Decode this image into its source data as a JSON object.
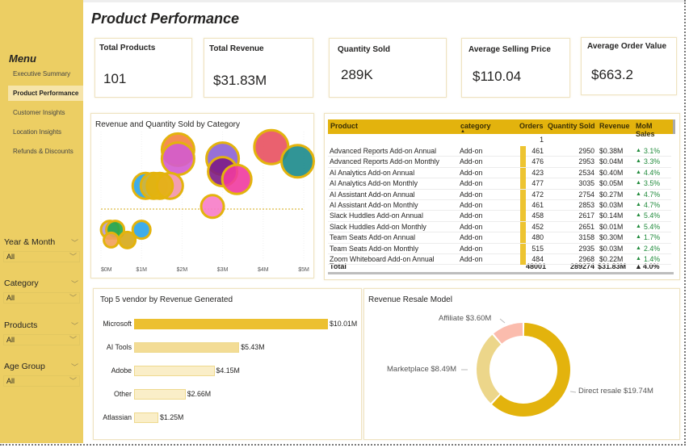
{
  "page": {
    "title": "Product Performance"
  },
  "sidebar": {
    "menu_title": "Menu",
    "items": [
      {
        "label": "Executive Summary",
        "active": false
      },
      {
        "label": "Product Performance",
        "active": true
      },
      {
        "label": "Customer Insights",
        "active": false
      },
      {
        "label": "Location Insights",
        "active": false
      },
      {
        "label": "Refunds & Discounts",
        "active": false
      }
    ],
    "slicers": [
      {
        "label": "Year & Month",
        "value": "All"
      },
      {
        "label": "Category",
        "value": "All"
      },
      {
        "label": "Products",
        "value": "All"
      },
      {
        "label": "Age Group",
        "value": "All"
      }
    ],
    "chevron": "﹀"
  },
  "kpis": [
    {
      "label": "Total Products",
      "value": "101"
    },
    {
      "label": "Total Revenue",
      "value": "$31.83M"
    },
    {
      "label": "Quantity Sold",
      "value": "289K"
    },
    {
      "label": "Average Selling Price",
      "value": "$110.04"
    },
    {
      "label": "Average Order Value",
      "value": "$663.2"
    }
  ],
  "colors": {
    "accent": "#e3b30d",
    "sidebar": "#ecce63",
    "positive": "#1f8a3a"
  },
  "table": {
    "columns": [
      "Product",
      "category",
      "Orders",
      "Quantity Sold",
      "Revenue",
      "MoM Sales"
    ],
    "sort_indicator": "▲",
    "first_row": {
      "orders": "1"
    },
    "rows": [
      {
        "product": "Advanced Reports Add-on Annual",
        "category": "Add-on",
        "orders": "461",
        "qty": "2950",
        "revenue": "$0.38M",
        "mom": "3.1%"
      },
      {
        "product": "Advanced Reports Add-on Monthly",
        "category": "Add-on",
        "orders": "476",
        "qty": "2953",
        "revenue": "$0.04M",
        "mom": "3.3%"
      },
      {
        "product": "AI Analytics Add-on Annual",
        "category": "Add-on",
        "orders": "423",
        "qty": "2534",
        "revenue": "$0.40M",
        "mom": "4.4%"
      },
      {
        "product": "AI Analytics Add-on Monthly",
        "category": "Add-on",
        "orders": "477",
        "qty": "3035",
        "revenue": "$0.05M",
        "mom": "3.5%"
      },
      {
        "product": "AI Assistant Add-on Annual",
        "category": "Add-on",
        "orders": "472",
        "qty": "2754",
        "revenue": "$0.27M",
        "mom": "4.7%"
      },
      {
        "product": "AI Assistant Add-on Monthly",
        "category": "Add-on",
        "orders": "461",
        "qty": "2853",
        "revenue": "$0.03M",
        "mom": "4.7%"
      },
      {
        "product": "Slack Huddles Add-on Annual",
        "category": "Add-on",
        "orders": "458",
        "qty": "2617",
        "revenue": "$0.14M",
        "mom": "5.4%"
      },
      {
        "product": "Slack Huddles Add-on Monthly",
        "category": "Add-on",
        "orders": "452",
        "qty": "2651",
        "revenue": "$0.01M",
        "mom": "5.4%"
      },
      {
        "product": "Team Seats Add-on Annual",
        "category": "Add-on",
        "orders": "480",
        "qty": "3158",
        "revenue": "$0.30M",
        "mom": "1.7%"
      },
      {
        "product": "Team Seats Add-on Monthly",
        "category": "Add-on",
        "orders": "515",
        "qty": "2935",
        "revenue": "$0.03M",
        "mom": "2.4%"
      },
      {
        "product": "Zoom Whiteboard Add-on Annual",
        "category": "Add-on",
        "orders": "484",
        "qty": "2968",
        "revenue": "$0.22M",
        "mom": "1.4%"
      }
    ],
    "total": {
      "label": "Total",
      "orders": "48001",
      "qty": "289274",
      "revenue": "$31.83M",
      "mom": "4.0%"
    },
    "up_arrow": "▲"
  },
  "chart_data": [
    {
      "type": "scatter",
      "title": "Revenue and Quantity Sold by Category",
      "xlabel": "",
      "ylabel": "",
      "x_ticks": [
        "$0M",
        "$1M",
        "$2M",
        "$3M",
        "$4M",
        "$5M"
      ],
      "xlim": [
        0,
        5
      ],
      "y_reference_line": "average (dashed)",
      "points": [
        {
          "x": 1.9,
          "y": 0.86,
          "size": 1.0,
          "color": "#f4813f"
        },
        {
          "x": 1.9,
          "y": 0.79,
          "size": 1.0,
          "color": "#d35bd0"
        },
        {
          "x": 3.0,
          "y": 0.79,
          "size": 1.0,
          "color": "#8c60d4"
        },
        {
          "x": 3.0,
          "y": 0.69,
          "size": 0.9,
          "color": "#7d1c86"
        },
        {
          "x": 3.35,
          "y": 0.63,
          "size": 0.9,
          "color": "#ef3aa0"
        },
        {
          "x": 4.2,
          "y": 0.88,
          "size": 1.05,
          "color": "#e8505f"
        },
        {
          "x": 4.85,
          "y": 0.77,
          "size": 1.0,
          "color": "#1b8a8b"
        },
        {
          "x": 1.1,
          "y": 0.58,
          "size": 0.8,
          "color": "#2aa3e8"
        },
        {
          "x": 1.3,
          "y": 0.58,
          "size": 0.8,
          "color": "#d4b53a"
        },
        {
          "x": 1.7,
          "y": 0.58,
          "size": 0.8,
          "color": "#f294a8"
        },
        {
          "x": 1.45,
          "y": 0.58,
          "size": 0.8,
          "color": "#e3b30d"
        },
        {
          "x": 2.75,
          "y": 0.42,
          "size": 0.7,
          "color": "#f77cc8"
        },
        {
          "x": 1.0,
          "y": 0.24,
          "size": 0.55,
          "color": "#2aa3e8"
        },
        {
          "x": 0.22,
          "y": 0.24,
          "size": 0.55,
          "color": "#b49ad6"
        },
        {
          "x": 0.35,
          "y": 0.24,
          "size": 0.55,
          "color": "#22a84a"
        },
        {
          "x": 0.25,
          "y": 0.16,
          "size": 0.45,
          "color": "#f2a05a"
        },
        {
          "x": 0.65,
          "y": 0.16,
          "size": 0.5,
          "color": "#d6a817"
        }
      ]
    },
    {
      "type": "bar",
      "orientation": "horizontal",
      "title": "Top 5 vendor by Revenue Generated",
      "categories": [
        "Microsoft",
        "AI Tools",
        "Adobe",
        "Other",
        "Atlassian"
      ],
      "values": [
        10.01,
        5.43,
        4.15,
        2.66,
        1.25
      ],
      "data_labels": [
        "$10.01M",
        "$5.43M",
        "$4.15M",
        "$2.66M",
        "$1.25M"
      ],
      "unit": "$M"
    },
    {
      "type": "pie",
      "variant": "donut",
      "title": "Revenue Resale Model",
      "categories": [
        "Direct resale",
        "Marketplace",
        "Affiliate"
      ],
      "values": [
        19.74,
        8.49,
        3.6
      ],
      "data_labels": [
        "Direct resale $19.74M",
        "Marketplace $8.49M",
        "Affiliate $3.60M"
      ],
      "colors": [
        "#e3b30d",
        "#ecd68a",
        "#fbbcad"
      ]
    }
  ]
}
